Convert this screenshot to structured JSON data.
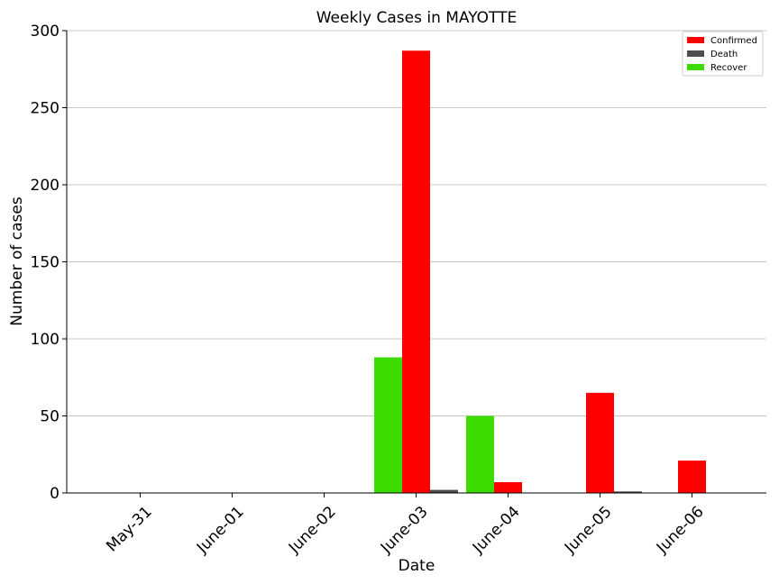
{
  "chart_data": {
    "type": "bar",
    "title": "Weekly Cases in MAYOTTE",
    "xlabel": "Date",
    "ylabel": "Number of cases",
    "categories": [
      "May-31",
      "June-01",
      "June-02",
      "June-03",
      "June-04",
      "June-05",
      "June-06"
    ],
    "series": [
      {
        "name": "Recover",
        "color": "#3ddc00",
        "values": [
          0,
          0,
          0,
          88,
          50,
          0,
          0
        ]
      },
      {
        "name": "Confirmed",
        "color": "#ff0000",
        "values": [
          0,
          0,
          0,
          287,
          7,
          65,
          21
        ]
      },
      {
        "name": "Death",
        "color": "#4d4d4d",
        "values": [
          0,
          0,
          0,
          2,
          0,
          1,
          0
        ]
      }
    ],
    "legend_order": [
      "Confirmed",
      "Death",
      "Recover"
    ],
    "ylim": [
      0,
      300
    ],
    "yticks": [
      0,
      50,
      100,
      150,
      200,
      250,
      300
    ],
    "grid": "horizontal",
    "legend_position": "top-right"
  }
}
